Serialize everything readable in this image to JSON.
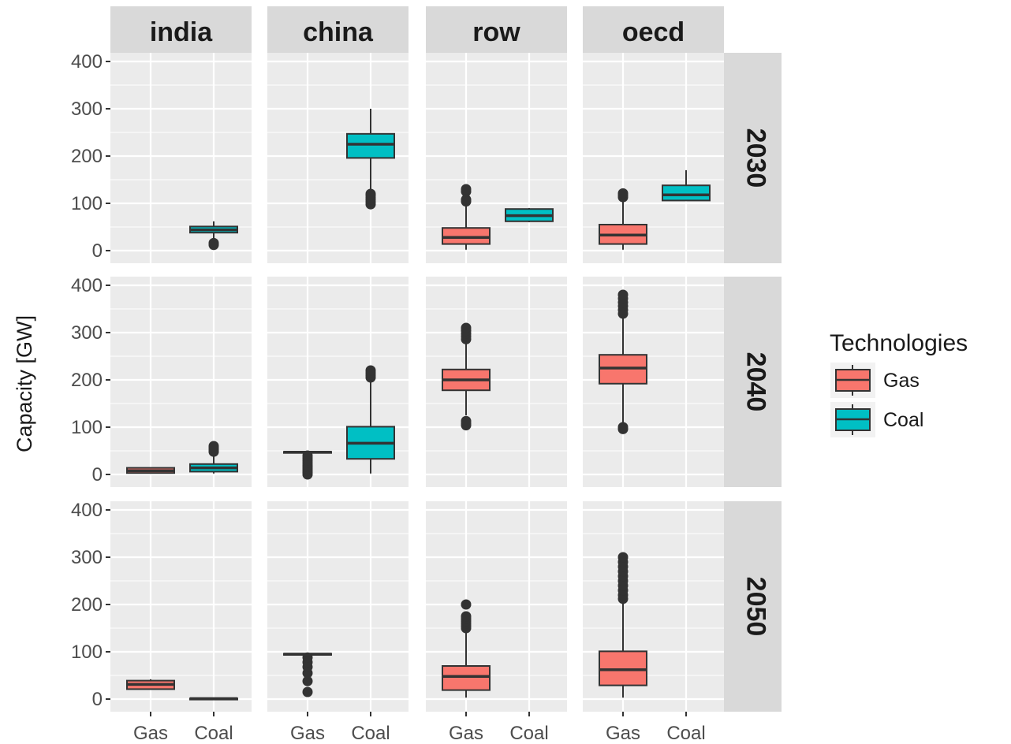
{
  "chart_data": {
    "type": "boxplot",
    "ylabel": "Capacity [GW]",
    "ylim": [
      0,
      400
    ],
    "yticks": [
      0,
      100,
      200,
      300,
      400
    ],
    "categories": [
      "Gas",
      "Coal"
    ],
    "facet_cols": [
      "india",
      "china",
      "row",
      "oecd"
    ],
    "facet_rows": [
      "2030",
      "2040",
      "2050"
    ],
    "legend": {
      "title": "Technologies",
      "placement": "right",
      "items": [
        {
          "label": "Gas",
          "color": "#F8766D"
        },
        {
          "label": "Coal",
          "color": "#00BFC4"
        }
      ]
    },
    "grid": true,
    "panel_background": "#EBEBEB",
    "strip_background": "#D9D9D9",
    "boxes": [
      {
        "row": "2030",
        "col": "india",
        "tech": "Coal",
        "whisker_low": 25,
        "q1": 38,
        "median": 44,
        "q3": 51,
        "whisker_high": 62,
        "outliers": [
          12,
          16
        ]
      },
      {
        "row": "2030",
        "col": "china",
        "tech": "Coal",
        "whisker_low": 130,
        "q1": 196,
        "median": 225,
        "q3": 247,
        "whisker_high": 300,
        "outliers": [
          98,
          103,
          108,
          112,
          117,
          120
        ]
      },
      {
        "row": "2030",
        "col": "row",
        "tech": "Gas",
        "whisker_low": 2,
        "q1": 14,
        "median": 28,
        "q3": 48,
        "whisker_high": 98,
        "outliers": [
          104,
          108,
          125,
          130
        ]
      },
      {
        "row": "2030",
        "col": "row",
        "tech": "Coal",
        "whisker_low": 60,
        "q1": 62,
        "median": 74,
        "q3": 88,
        "whisker_high": 90,
        "outliers": []
      },
      {
        "row": "2030",
        "col": "oecd",
        "tech": "Gas",
        "whisker_low": 2,
        "q1": 14,
        "median": 33,
        "q3": 55,
        "whisker_high": 108,
        "outliers": [
          113,
          117,
          121
        ]
      },
      {
        "row": "2030",
        "col": "oecd",
        "tech": "Coal",
        "whisker_low": 105,
        "q1": 106,
        "median": 118,
        "q3": 138,
        "whisker_high": 170,
        "outliers": []
      },
      {
        "row": "2040",
        "col": "india",
        "tech": "Gas",
        "whisker_low": 2,
        "q1": 3,
        "median": 8,
        "q3": 14,
        "whisker_high": 15,
        "outliers": []
      },
      {
        "row": "2040",
        "col": "india",
        "tech": "Coal",
        "whisker_low": 2,
        "q1": 6,
        "median": 14,
        "q3": 22,
        "whisker_high": 42,
        "outliers": [
          48,
          52,
          56,
          60
        ]
      },
      {
        "row": "2040",
        "col": "china",
        "tech": "Gas",
        "whisker_low": 45,
        "q1": 46,
        "median": 47,
        "q3": 48,
        "whisker_high": 49,
        "outliers": [
          0,
          4,
          8,
          12,
          16,
          20,
          25,
          30,
          35,
          40
        ]
      },
      {
        "row": "2040",
        "col": "china",
        "tech": "Coal",
        "whisker_low": 2,
        "q1": 33,
        "median": 66,
        "q3": 101,
        "whisker_high": 200,
        "outliers": [
          205,
          210,
          215,
          220
        ]
      },
      {
        "row": "2040",
        "col": "row",
        "tech": "Gas",
        "whisker_low": 125,
        "q1": 178,
        "median": 200,
        "q3": 222,
        "whisker_high": 280,
        "outliers": [
          104,
          108,
          113,
          286,
          292,
          298,
          304,
          310
        ]
      },
      {
        "row": "2040",
        "col": "oecd",
        "tech": "Gas",
        "whisker_low": 103,
        "q1": 192,
        "median": 225,
        "q3": 253,
        "whisker_high": 333,
        "outliers": [
          96,
          100,
          340,
          348,
          356,
          364,
          372,
          380
        ]
      },
      {
        "row": "2050",
        "col": "india",
        "tech": "Gas",
        "whisker_low": 20,
        "q1": 21,
        "median": 31,
        "q3": 39,
        "whisker_high": 42,
        "outliers": []
      },
      {
        "row": "2050",
        "col": "india",
        "tech": "Coal",
        "whisker_low": 0,
        "q1": 0.5,
        "median": 1,
        "q3": 1.5,
        "whisker_high": 2,
        "outliers": []
      },
      {
        "row": "2050",
        "col": "china",
        "tech": "Gas",
        "whisker_low": 93,
        "q1": 94,
        "median": 95,
        "q3": 96,
        "whisker_high": 97,
        "outliers": [
          15,
          38,
          55,
          68,
          78,
          88
        ]
      },
      {
        "row": "2050",
        "col": "row",
        "tech": "Gas",
        "whisker_low": 3,
        "q1": 19,
        "median": 48,
        "q3": 70,
        "whisker_high": 145,
        "outliers": [
          150,
          155,
          160,
          165,
          170,
          175,
          200
        ]
      },
      {
        "row": "2050",
        "col": "oecd",
        "tech": "Gas",
        "whisker_low": 3,
        "q1": 29,
        "median": 62,
        "q3": 101,
        "whisker_high": 205,
        "outliers": [
          212,
          220,
          230,
          240,
          250,
          260,
          270,
          280,
          290,
          300
        ]
      }
    ]
  }
}
